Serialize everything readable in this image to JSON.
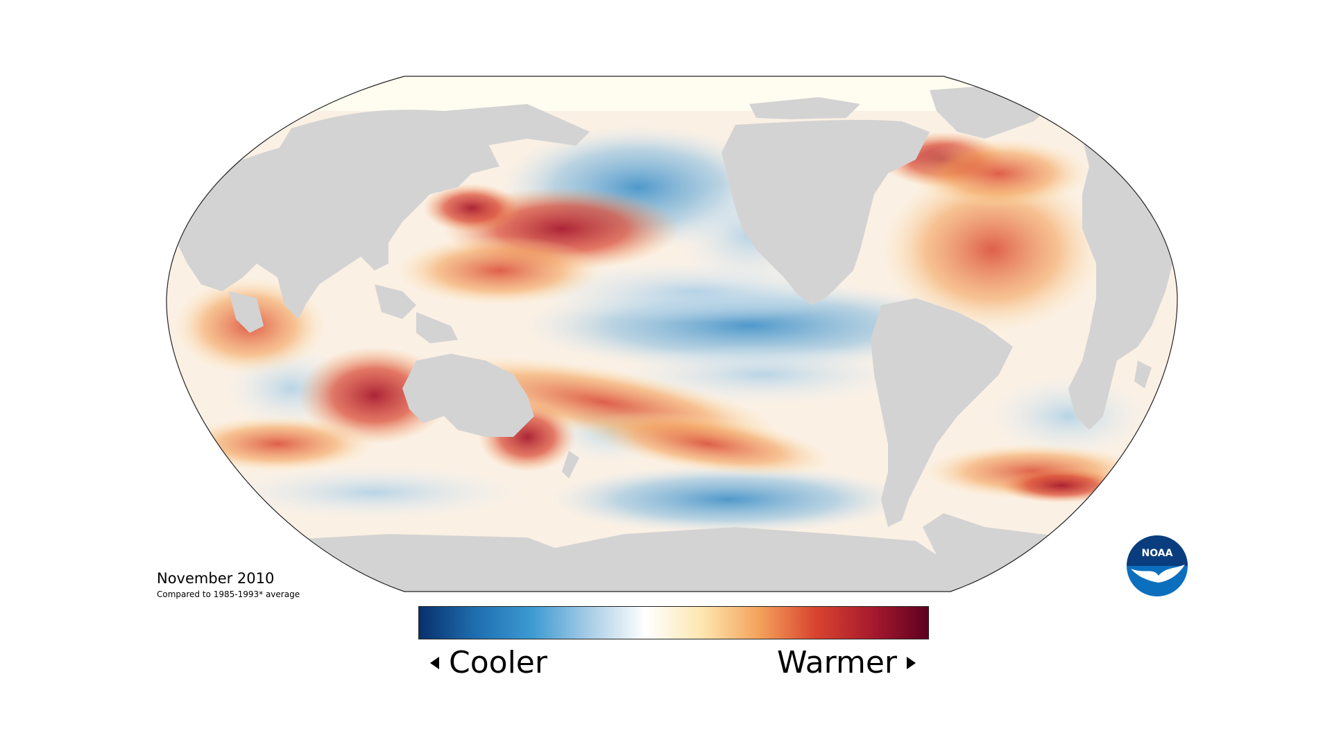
{
  "caption": {
    "title": "November 2010",
    "subtitle": "Compared to 1985-1993* average"
  },
  "legend": {
    "left_label": "Cooler",
    "right_label": "Warmer",
    "gradient": [
      "#08306b",
      "#1f6eb0",
      "#3d9ad2",
      "#a8cde6",
      "#ffffff",
      "#fde6b0",
      "#f4a35c",
      "#d9452f",
      "#a81a2e",
      "#5e0020"
    ]
  },
  "logo": {
    "text": "NOAA",
    "color": "#0b6fbd",
    "dark": "#0a3d7d"
  },
  "colors": {
    "land": "#d3d3d3",
    "border": "#222222",
    "arctic_ice": "#fffdf0"
  },
  "icons": [
    "cooler-arrow-icon",
    "warmer-arrow-icon",
    "noaa-logo-icon"
  ]
}
